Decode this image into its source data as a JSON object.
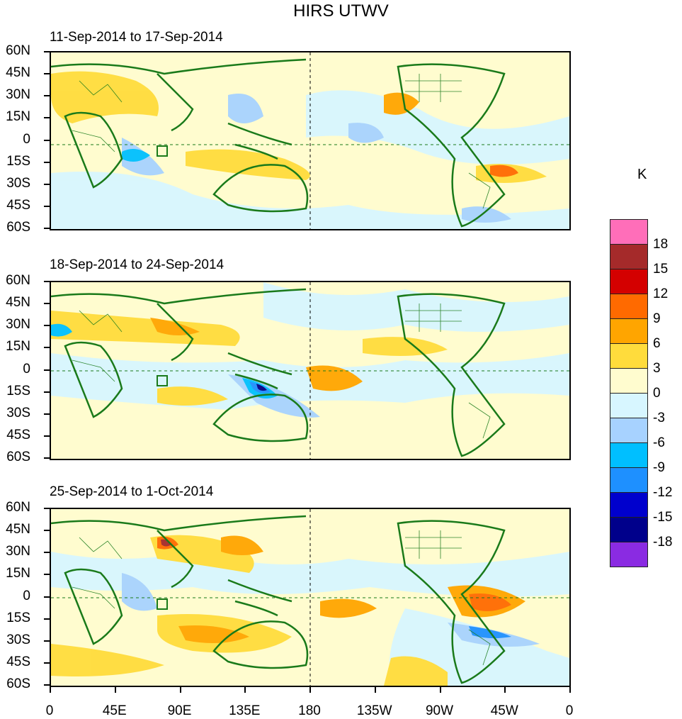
{
  "title": "HIRS UTWV",
  "unit": "K",
  "panels": [
    {
      "label": "11-Sep-2014 to 17-Sep-2014"
    },
    {
      "label": "18-Sep-2014 to 24-Sep-2014"
    },
    {
      "label": "25-Sep-2014 to 1-Oct-2014"
    }
  ],
  "lat_ticks": [
    "60N",
    "45N",
    "30N",
    "15N",
    "0",
    "15S",
    "30S",
    "45S",
    "60S"
  ],
  "lon_ticks": [
    "0",
    "45E",
    "90E",
    "135E",
    "180",
    "135W",
    "90W",
    "45W",
    "0"
  ],
  "colorbar": {
    "labels": [
      "18",
      "15",
      "12",
      "9",
      "6",
      "3",
      "0",
      "-3",
      "-6",
      "-9",
      "-12",
      "-15",
      "-18"
    ],
    "colors": [
      "#ff6eb9",
      "#a52a2a",
      "#d40000",
      "#ff6a00",
      "#ffa500",
      "#ffdc3c",
      "#fffccf",
      "#d7f6ff",
      "#a7d2ff",
      "#00bfff",
      "#1e90ff",
      "#0000cd",
      "#00008b",
      "#8a2be2"
    ]
  },
  "colors": {
    "land_outline": "#1a7a1a",
    "neutral": "#fffccf",
    "cool": "#d7f6ff"
  }
}
